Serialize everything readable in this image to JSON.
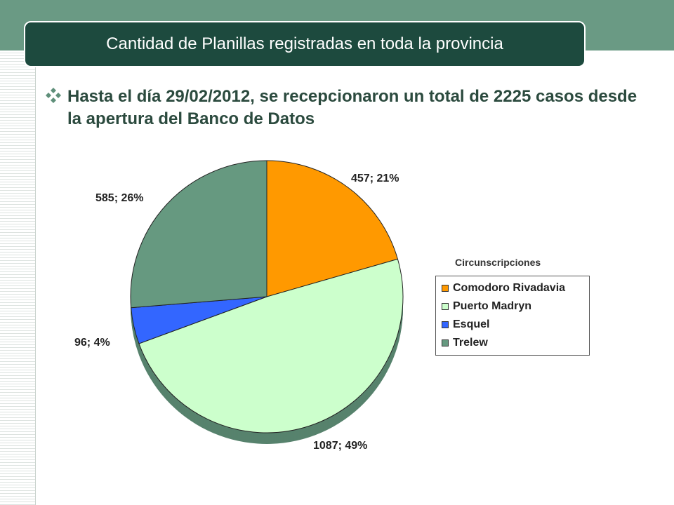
{
  "header": {
    "title": "Cantidad de Planillas registradas en toda la provincia"
  },
  "bullet": {
    "text": "Hasta el día 29/02/2012, se recepcionaron un total de 2225 casos desde la apertura del Banco de Datos"
  },
  "colors": {
    "band": "#6a9a84",
    "title_bg": "#1d4a3e",
    "bullet_icon": "#5f8f7a"
  },
  "chart_data": {
    "type": "pie",
    "title": "",
    "legend_title": "Circunscripciones",
    "legend_position": "right",
    "labels": [
      "Comodoro Rivadavia",
      "Puerto Madryn",
      "Esquel",
      "Trelew"
    ],
    "values": [
      457,
      1087,
      96,
      585
    ],
    "percent_labels": [
      "21%",
      "49%",
      "4%",
      "26%"
    ],
    "data_labels": [
      "457; 21%",
      "1087; 49%",
      "96; 4%",
      "585; 26%"
    ],
    "colors": [
      "#ff9900",
      "#ccffcc",
      "#3366ff",
      "#669980"
    ]
  }
}
